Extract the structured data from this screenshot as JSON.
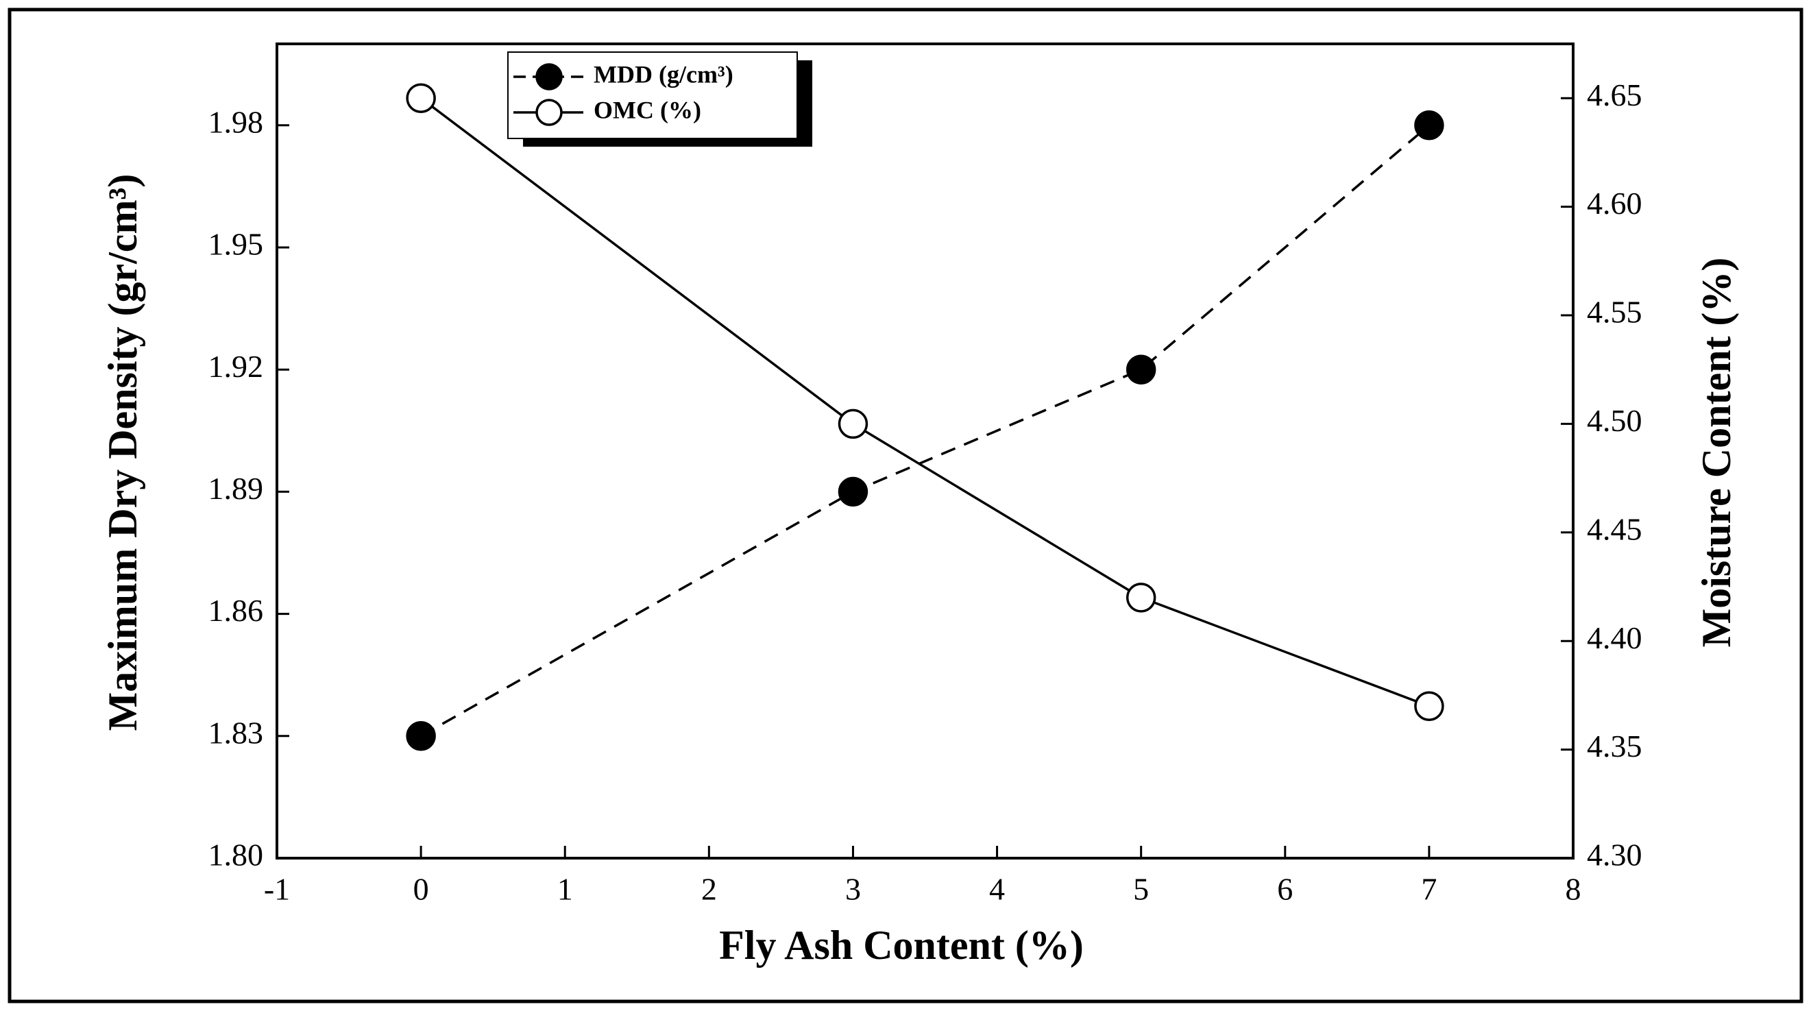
{
  "chart_data": {
    "type": "line",
    "xlabel": "Fly Ash Content (%)",
    "ylabel": "Maximum Dry Density (gr/cm³)",
    "y2label": "Moisture Content (%)",
    "x": [
      0,
      3,
      5,
      7
    ],
    "xlim": [
      -1,
      8
    ],
    "xticks": [
      -1,
      0,
      1,
      2,
      3,
      4,
      5,
      6,
      7,
      8
    ],
    "ylim": [
      1.8,
      2.0
    ],
    "yticks": [
      {
        "value": 1.8,
        "label": "1.80"
      },
      1.83,
      1.86,
      1.89,
      1.92,
      1.95,
      1.98
    ],
    "y2lim": [
      4.3,
      4.675
    ],
    "y2ticks": [
      {
        "value": 4.3,
        "label": "4.30"
      },
      4.35,
      {
        "value": 4.4,
        "label": "4.40"
      },
      4.45,
      {
        "value": 4.5,
        "label": "4.50"
      },
      4.55,
      {
        "value": 4.6,
        "label": "4.60"
      },
      4.65
    ],
    "series": [
      {
        "name": "MDD (g/cm³)",
        "color": "#000000",
        "dash": true,
        "marker": "filled",
        "values": [
          1.83,
          1.89,
          1.92,
          1.98
        ]
      },
      {
        "name": "OMC (%)",
        "color": "#000000",
        "dash": false,
        "marker": "open",
        "axis": "y2",
        "values": [
          4.65,
          4.5,
          4.42,
          4.37
        ]
      }
    ],
    "legend": "upper left"
  }
}
